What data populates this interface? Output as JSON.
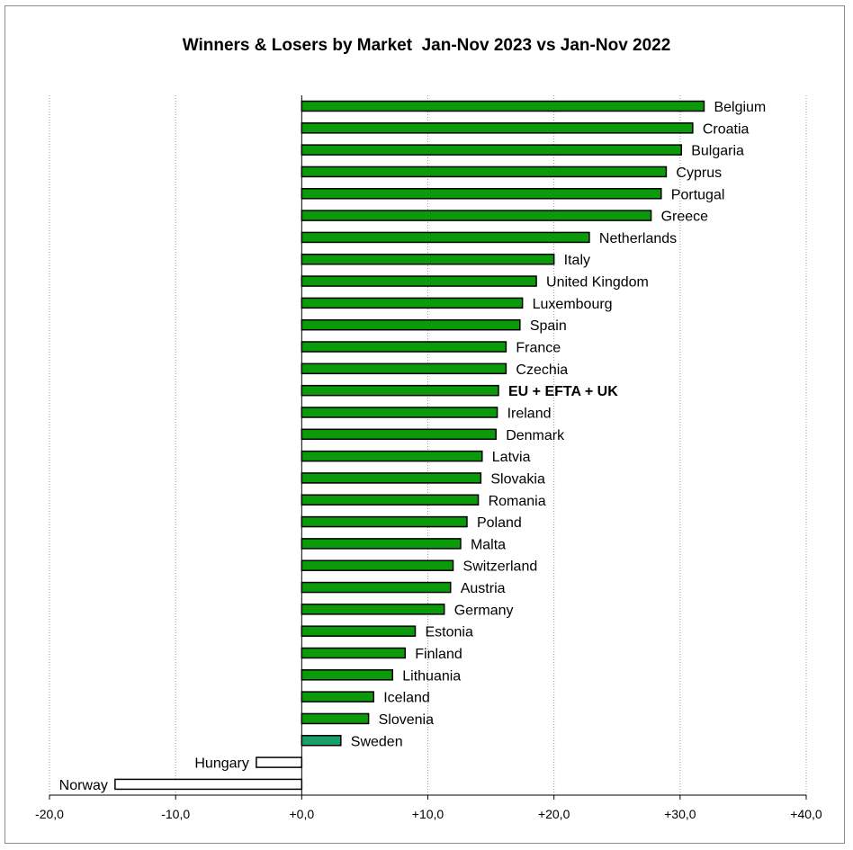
{
  "chart_data": {
    "type": "bar",
    "orientation": "horizontal",
    "title": "Winners & Losers by Market  Jan-Nov 2023 vs Jan-Nov 2022",
    "xlim": [
      -20,
      40
    ],
    "xticks": [
      -20,
      -10,
      0,
      10,
      20,
      30,
      40
    ],
    "xtick_labels": [
      "-20,0",
      "-10,0",
      "+0,0",
      "+10,0",
      "+20,0",
      "+30,0",
      "+40,0"
    ],
    "grid": "vertical dotted",
    "colors": {
      "positive": "#0a9a0a",
      "highlight": "#17a06a",
      "negative": "#ffffff",
      "border": "#000000"
    },
    "categories": [
      "Belgium",
      "Croatia",
      "Bulgaria",
      "Cyprus",
      "Portugal",
      "Greece",
      "Netherlands",
      "Italy",
      "United Kingdom",
      "Luxembourg",
      "Spain",
      "France",
      "Czechia",
      "EU + EFTA + UK",
      "Ireland",
      "Denmark",
      "Latvia",
      "Slovakia",
      "Romania",
      "Poland",
      "Malta",
      "Switzerland",
      "Austria",
      "Germany",
      "Estonia",
      "Finland",
      "Lithuania",
      "Iceland",
      "Slovenia",
      "Sweden",
      "Hungary",
      "Norway"
    ],
    "values": [
      31.9,
      31.0,
      30.1,
      28.9,
      28.5,
      27.7,
      22.8,
      20.0,
      18.6,
      17.5,
      17.3,
      16.2,
      16.2,
      15.6,
      15.5,
      15.4,
      14.3,
      14.2,
      14.0,
      13.1,
      12.6,
      12.0,
      11.8,
      11.3,
      9.0,
      8.2,
      7.2,
      5.7,
      5.3,
      3.1,
      -3.6,
      -14.8
    ],
    "bold_categories": [
      "EU + EFTA + UK"
    ],
    "highlight_categories": [
      "Sweden"
    ]
  }
}
